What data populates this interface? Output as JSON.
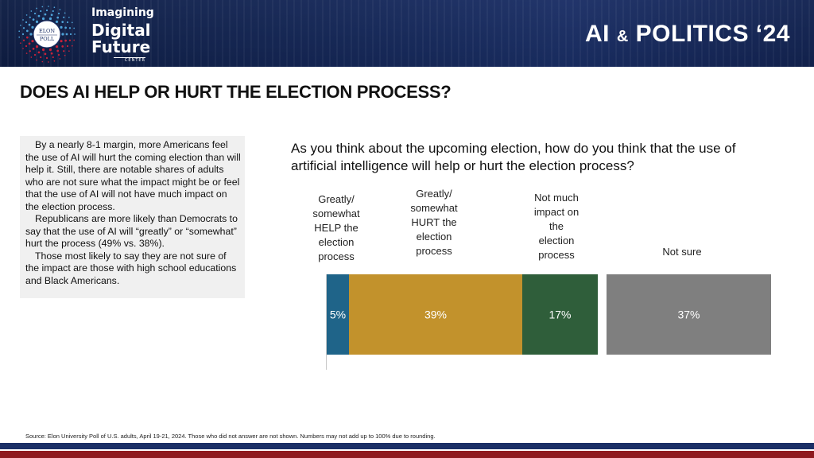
{
  "header": {
    "logo_seal_text": "ELON POLL",
    "logo_line1": "Imagining",
    "logo_line2": "Digital",
    "logo_line3": "Future",
    "logo_center": "CENTER",
    "section_title_part1": "AI",
    "section_title_amp": "&",
    "section_title_part2": "POLITICS ‘24"
  },
  "page_title": "DOES AI HELP OR HURT THE ELECTION PROCESS?",
  "sidebar": {
    "paragraphs": [
      "By a nearly 8-1 margin, more Americans feel the use of AI will hurt the coming election than will help it. Still, there are notable shares of adults who are not sure what the impact might be or feel that the use of AI will not have much impact on the election process.",
      "Republicans are more likely than Democrats to say that the use of AI will “greatly” or “somewhat” hurt the process (49% vs. 38%).",
      "Those most likely to say they are not sure of the impact are those with high school educations and Black Americans."
    ]
  },
  "source": "Source: Elon University Poll of U.S. adults, April 19-21, 2024. Those who did not answer are not shown. Numbers may not add up to 100% due to rounding.",
  "colors": {
    "help": "#1f6489",
    "hurt": "#c2922c",
    "no_impact": "#2f5e3a",
    "not_sure": "#7f7f7f"
  },
  "chart_data": {
    "type": "bar",
    "orientation": "horizontal-stacked",
    "title": "As you think about the upcoming election, how do you think that the use of artificial intelligence will help or hurt the election process?",
    "categories": [
      "Greatly/ somewhat HELP the election process",
      "Greatly/ somewhat HURT the election process",
      "Not much impact on the election process",
      "Not sure"
    ],
    "label_lines": [
      [
        "Greatly/",
        "somewhat",
        "HELP the",
        "election",
        "process"
      ],
      [
        "Greatly/",
        "somewhat",
        "HURT the",
        "election",
        "process"
      ],
      [
        "Not much",
        "impact on",
        "the",
        "election",
        "process"
      ],
      [
        "Not sure"
      ]
    ],
    "values": [
      5,
      39,
      17,
      37
    ],
    "value_labels": [
      "5%",
      "39%",
      "17%",
      "37%"
    ],
    "unit": "%",
    "separate_last_segment": true,
    "xlabel": "",
    "ylabel": ""
  }
}
